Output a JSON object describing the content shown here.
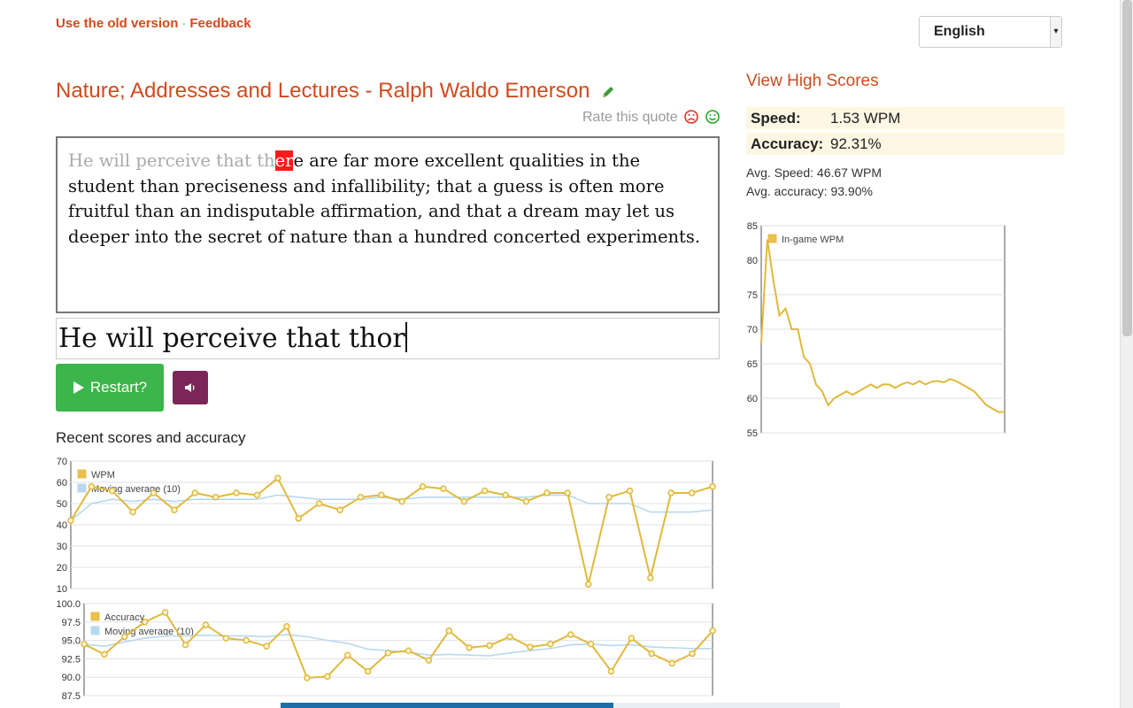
{
  "top_links": {
    "old_version": "Use the old version",
    "separator": "·",
    "feedback": "Feedback"
  },
  "language": {
    "selected": "English"
  },
  "quote": {
    "title": "Nature; Addresses and Lectures - Ralph Waldo Emerson",
    "rate_label": "Rate this quote",
    "typed_part": "He will perceive that th",
    "error_part": "er",
    "remaining_part": "e are far more excellent qualities in the student than preciseness and infallibility; that a guess is often more fruitful than an indisputable affirmation, and that a dream may let us deeper into the secret of nature than a hundred concerted experiments."
  },
  "input": {
    "value": "He will perceive that thor"
  },
  "buttons": {
    "restart_label": "Restart?"
  },
  "recent": {
    "title": "Recent scores and accuracy"
  },
  "high_scores": {
    "link": "View High Scores"
  },
  "stats": {
    "speed_label": "Speed:",
    "speed_value": "1.53 WPM",
    "accuracy_label": "Accuracy:",
    "accuracy_value": "92.31%",
    "avg_speed": "Avg. Speed: 46.67 WPM",
    "avg_accuracy": "Avg. accuracy: 93.90%"
  },
  "colors": {
    "accent": "#d14a1d",
    "gold": "#e8c04a",
    "line_gold": "#e0b93c",
    "blue": "#b8d8f0",
    "restart": "#3cb54a",
    "sound": "#7a2757",
    "error": "#ff1a1a"
  },
  "chart_data": [
    {
      "type": "line",
      "ylim": [
        10,
        70
      ],
      "yticks": [
        "70",
        "60",
        "50",
        "40",
        "30",
        "20",
        "10"
      ],
      "series": [
        {
          "name": "WPM",
          "values": [
            42,
            58,
            56,
            46,
            55,
            47,
            55,
            53,
            55,
            54,
            62,
            43,
            50,
            47,
            53,
            54,
            51,
            58,
            57,
            51,
            56,
            54,
            51,
            55,
            55,
            12,
            53,
            56,
            15,
            55,
            55,
            58
          ]
        },
        {
          "name": "Moving average (10)",
          "values": [
            42,
            50,
            52,
            51,
            52,
            51,
            52,
            52,
            52,
            52,
            54,
            53,
            52,
            52,
            52,
            53,
            52,
            53,
            53,
            53,
            53,
            53,
            53,
            54,
            54,
            50,
            50,
            50,
            46,
            46,
            46,
            47
          ]
        }
      ]
    },
    {
      "type": "line",
      "ylim": [
        87.5,
        100
      ],
      "yticks": [
        "100.0",
        "97.5",
        "95.0",
        "92.5",
        "90.0",
        "87.5"
      ],
      "series": [
        {
          "name": "Accuracy",
          "values": [
            94.5,
            93.1,
            95.5,
            97.5,
            98.8,
            94.4,
            97.1,
            95.3,
            95.0,
            94.2,
            96.9,
            89.9,
            90.1,
            93.0,
            90.8,
            93.3,
            93.6,
            92.3,
            96.3,
            94.0,
            94.3,
            95.5,
            94.1,
            94.5,
            95.8,
            94.5,
            90.8,
            95.3,
            93.2,
            91.9,
            93.2,
            96.3
          ]
        },
        {
          "name": "Moving average (10)",
          "values": [
            94.5,
            94.2,
            94.8,
            95.3,
            95.6,
            95.6,
            95.7,
            95.6,
            95.6,
            95.5,
            95.8,
            95.5,
            95.0,
            94.6,
            93.8,
            93.6,
            93.4,
            93.0,
            93.1,
            93.0,
            92.9,
            93.3,
            93.6,
            93.9,
            94.4,
            94.5,
            94.3,
            94.4,
            94.1,
            94.0,
            93.9,
            93.9
          ]
        }
      ]
    },
    {
      "type": "line",
      "ylim": [
        55,
        85
      ],
      "yticks": [
        "85",
        "80",
        "75",
        "70",
        "65",
        "60",
        "55"
      ],
      "series": [
        {
          "name": "In-game WPM",
          "values": [
            68,
            83,
            77,
            72,
            73,
            70,
            70,
            66,
            65,
            62,
            61,
            59,
            60,
            60.5,
            61,
            60.5,
            61,
            61.5,
            62,
            61.5,
            62,
            62,
            61.5,
            62,
            62.3,
            62,
            62.5,
            62,
            62.4,
            62.5,
            62.3,
            62.8,
            62.5,
            62,
            61.5,
            61,
            60,
            59,
            58.5,
            58,
            58
          ]
        }
      ]
    }
  ]
}
